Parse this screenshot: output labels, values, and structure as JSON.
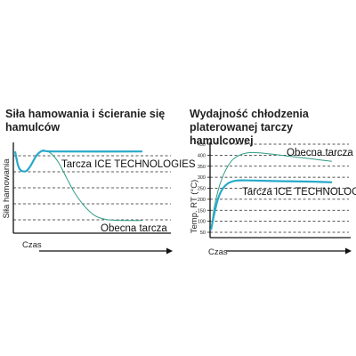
{
  "colors": {
    "ice": "#27a9c9",
    "current": "#2f9c86",
    "axis": "#111111"
  },
  "chart_data": [
    {
      "type": "line",
      "title": "Siła hamowania i ścieranie się hamulców",
      "xlabel": "Czas",
      "ylabel": "Siła hamowania",
      "series": [
        {
          "name": "Tarcza ICE TECHNOLOGIES",
          "color": "#27a9c9",
          "stroke_w": 2.2,
          "points": [
            [
              0,
              0.9
            ],
            [
              0.03,
              0.72
            ],
            [
              0.08,
              0.68
            ],
            [
              0.12,
              0.74
            ],
            [
              0.17,
              0.86
            ],
            [
              0.22,
              0.91
            ],
            [
              0.3,
              0.9
            ],
            [
              1.0,
              0.9
            ]
          ]
        },
        {
          "name": "Obecna tarcza",
          "color": "#2f9c86",
          "stroke_w": 1.0,
          "points": [
            [
              0,
              0.9
            ],
            [
              0.03,
              0.72
            ],
            [
              0.08,
              0.68
            ],
            [
              0.12,
              0.74
            ],
            [
              0.17,
              0.86
            ],
            [
              0.22,
              0.91
            ],
            [
              0.28,
              0.88
            ],
            [
              0.34,
              0.78
            ],
            [
              0.4,
              0.62
            ],
            [
              0.47,
              0.44
            ],
            [
              0.55,
              0.29
            ],
            [
              0.63,
              0.19
            ],
            [
              0.72,
              0.15
            ],
            [
              0.85,
              0.14
            ],
            [
              1.0,
              0.14
            ]
          ]
        }
      ]
    },
    {
      "type": "line",
      "title": "Wydajność chłodzenia platerowanej tarczy hamulcowej",
      "xlabel": "Czas",
      "ylabel": "Temp. RT (°C)",
      "yticks": [
        50,
        100,
        150,
        200,
        250,
        300,
        350,
        400,
        450
      ],
      "ylim": [
        50,
        450
      ],
      "series": [
        {
          "name": "Obecna tarcza",
          "color": "#2f9c86",
          "stroke_w": 1.0,
          "points": [
            [
              0,
              60
            ],
            [
              0.03,
              170
            ],
            [
              0.07,
              260
            ],
            [
              0.12,
              330
            ],
            [
              0.18,
              380
            ],
            [
              0.26,
              405
            ],
            [
              0.35,
              412
            ],
            [
              0.5,
              405
            ],
            [
              0.65,
              395
            ],
            [
              0.85,
              382
            ],
            [
              1.0,
              372
            ]
          ]
        },
        {
          "name": "Tarcza ICE TECHNOLOGIES",
          "color": "#27a9c9",
          "stroke_w": 2.2,
          "points": [
            [
              0,
              60
            ],
            [
              0.03,
              140
            ],
            [
              0.06,
              205
            ],
            [
              0.1,
              250
            ],
            [
              0.15,
              275
            ],
            [
              0.22,
              285
            ],
            [
              0.35,
              285
            ],
            [
              0.6,
              282
            ],
            [
              0.85,
              280
            ],
            [
              1.0,
              277
            ]
          ]
        }
      ]
    }
  ]
}
